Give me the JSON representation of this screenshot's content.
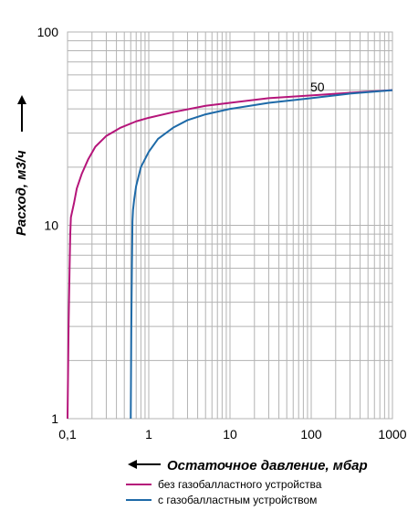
{
  "chart_data": {
    "type": "line",
    "xlabel": "Остаточное давление, мбар",
    "ylabel": "Расход, м3/ч",
    "xscale": "log",
    "yscale": "log",
    "xlim": [
      0.1,
      1000
    ],
    "ylim": [
      1,
      100
    ],
    "grid": true,
    "xticks": [
      "0,1",
      "1",
      "10",
      "100",
      "1000"
    ],
    "yticks": [
      "1",
      "10",
      "100"
    ],
    "legend_position": "bottom",
    "annotations": [
      {
        "text": "50",
        "x": 100,
        "y": 50
      }
    ],
    "series": [
      {
        "name": "без газобалластного устройства",
        "color": "#b5157a",
        "points": [
          [
            0.1,
            1
          ],
          [
            0.103,
            3
          ],
          [
            0.106,
            6
          ],
          [
            0.108,
            9
          ],
          [
            0.11,
            11
          ],
          [
            0.12,
            13
          ],
          [
            0.13,
            15.5
          ],
          [
            0.15,
            18.5
          ],
          [
            0.18,
            22
          ],
          [
            0.22,
            25.5
          ],
          [
            0.3,
            29
          ],
          [
            0.45,
            32
          ],
          [
            0.7,
            34.5
          ],
          [
            1,
            36
          ],
          [
            2,
            38.5
          ],
          [
            5,
            41.5
          ],
          [
            10,
            43
          ],
          [
            30,
            45.5
          ],
          [
            100,
            47
          ],
          [
            300,
            48.5
          ],
          [
            1000,
            50
          ]
        ]
      },
      {
        "name": "с газобалластным устройством",
        "color": "#1e6aa8",
        "points": [
          [
            0.6,
            1
          ],
          [
            0.61,
            3
          ],
          [
            0.62,
            6
          ],
          [
            0.63,
            10.5
          ],
          [
            0.64,
            12
          ],
          [
            0.66,
            13.5
          ],
          [
            0.7,
            16
          ],
          [
            0.8,
            20
          ],
          [
            1,
            24
          ],
          [
            1.3,
            28
          ],
          [
            2,
            32
          ],
          [
            3,
            35
          ],
          [
            5,
            37.5
          ],
          [
            10,
            40
          ],
          [
            30,
            43
          ],
          [
            100,
            45.5
          ],
          [
            300,
            48
          ],
          [
            1000,
            50
          ]
        ]
      }
    ]
  }
}
